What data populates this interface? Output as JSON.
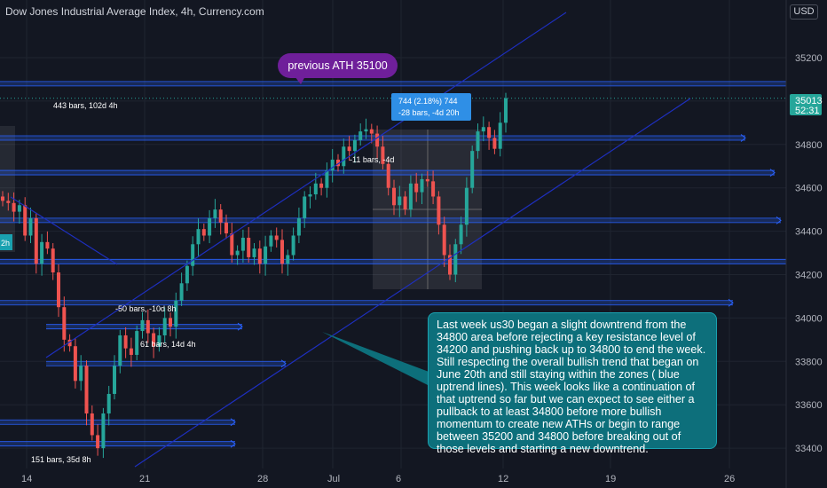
{
  "header": {
    "title": "Dow Jones Industrial Average Index, 4h, Currency.com",
    "currency": "USD"
  },
  "price": {
    "current": "35013",
    "countdown": "52:31"
  },
  "chart_data": {
    "type": "candlestick",
    "title": "Dow Jones Industrial Average Index, 4h, Currency.com",
    "y_ticks": [
      35200,
      35000,
      34800,
      34600,
      34400,
      34200,
      34000,
      33800,
      33600,
      33400
    ],
    "x_ticks": [
      "14",
      "21",
      "28",
      "Jul",
      "6",
      "12",
      "19",
      "26"
    ],
    "ylim": [
      33330,
      35420
    ],
    "horizontal_levels": [
      35080,
      34830,
      34670,
      34450,
      34260,
      34070,
      33960,
      33790,
      33520,
      33420
    ],
    "trend_channel": {
      "upper": [
        [
          33790,
          35450
        ]
      ],
      "lower": [
        [
          33330,
          34940
        ]
      ]
    },
    "sample_close_path": [
      34540,
      34530,
      34490,
      34520,
      34380,
      34460,
      34250,
      34350,
      34320,
      34210,
      34050,
      33900,
      33870,
      33710,
      33780,
      33560,
      33460,
      33400,
      33560,
      33650,
      33780,
      33920,
      33860,
      33830,
      33940,
      33990,
      33930,
      33870,
      33920,
      34000,
      33960,
      34080,
      34160,
      34240,
      34340,
      34410,
      34380,
      34460,
      34500,
      34440,
      34390,
      34290,
      34310,
      34370,
      34280,
      34320,
      34250,
      34330,
      34380,
      34360,
      34250,
      34290,
      34380,
      34460,
      34560,
      34570,
      34620,
      34600,
      34680,
      34730,
      34700,
      34790,
      34770,
      34820,
      34860,
      34870,
      34850,
      34790,
      34710,
      34600,
      34520,
      34560,
      34500,
      34620,
      34580,
      34640,
      34630,
      34560,
      34430,
      34290,
      34200,
      34340,
      34430,
      34600,
      34770,
      34860,
      34880,
      34830,
      34780,
      34900,
      35013
    ]
  },
  "annotations": {
    "bubble": "previous ATH 35100",
    "bars_443": "443 bars, 102d 4h",
    "bars_11": "-11 bars, -4d",
    "bars_50": "-50 bars, -10d 8h",
    "bars_61": "61 bars, 14d 4h",
    "bars_151": "151 bars, 35d 8h",
    "left_tag": "2h",
    "measure_line1": "744 (2.18%) 744",
    "measure_line2": "-28 bars, -4d 20h",
    "note": "Last week us30 began a slight downtrend from the 34800 area before rejecting a key resistance level of 34200 and pushing back up to 34800 to end the week. Still respecting the overall bullish trend that began on June 20th and still staying within the zones ( blue uptrend lines). This week looks like a continuation of that uptrend so far but we can expect to see either a pullback to at least 34800 before more bullish momentum to create new ATHs or begin to range between 35200 and 34800 before breaking out of those levels and starting a new downtrend."
  },
  "colors": {
    "up": "#26a69a",
    "down": "#ef5350",
    "level": "#2962ff",
    "channel": "#1e2fbf",
    "background": "#131722"
  }
}
